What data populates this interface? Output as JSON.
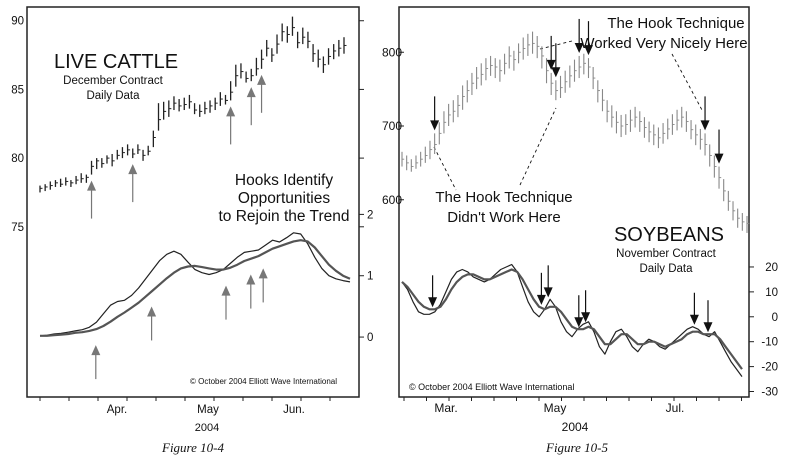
{
  "chart_data": [
    {
      "type": "line",
      "title": "LIVE CATTLE",
      "subtitle": [
        "December Contract",
        "Daily Data"
      ],
      "annotation": [
        "Hooks Identify",
        "Opportunities",
        "to Rejoin the Trend"
      ],
      "copyright": "© October 2004 Elliott Wave International",
      "figure_label": "Figure 10-4",
      "x_tick_labels": [
        "Apr.",
        "May",
        "Jun."
      ],
      "x_year": "2004",
      "price": {
        "y_ticks": [
          75,
          80,
          85,
          90
        ],
        "ylim": [
          72,
          91
        ],
        "bars": [
          [
            77.8,
            77.5,
            78.0
          ],
          [
            77.9,
            77.6,
            78.1
          ],
          [
            78.0,
            77.7,
            78.3
          ],
          [
            78.2,
            77.9,
            78.4
          ],
          [
            78.1,
            77.9,
            78.5
          ],
          [
            78.3,
            78.0,
            78.6
          ],
          [
            78.2,
            77.9,
            78.4
          ],
          [
            78.4,
            78.1,
            78.7
          ],
          [
            78.5,
            78.2,
            78.9
          ],
          [
            78.6,
            78.2,
            78.8
          ],
          [
            79.4,
            78.8,
            79.8
          ],
          [
            79.8,
            79.2,
            80.0
          ],
          [
            79.6,
            79.3,
            80.0
          ],
          [
            80.0,
            79.6,
            80.2
          ],
          [
            79.8,
            79.4,
            80.3
          ],
          [
            80.2,
            79.9,
            80.6
          ],
          [
            80.4,
            80.0,
            80.8
          ],
          [
            80.6,
            80.2,
            81.0
          ],
          [
            80.3,
            80.0,
            80.7
          ],
          [
            80.6,
            80.3,
            81.0
          ],
          [
            80.2,
            79.8,
            80.6
          ],
          [
            80.5,
            80.2,
            80.9
          ],
          [
            81.5,
            80.8,
            82.0
          ],
          [
            82.8,
            82.0,
            84.0
          ],
          [
            83.4,
            82.8,
            84.1
          ],
          [
            83.6,
            83.0,
            84.2
          ],
          [
            84.0,
            83.5,
            84.5
          ],
          [
            83.8,
            83.4,
            84.3
          ],
          [
            83.9,
            83.5,
            84.4
          ],
          [
            84.1,
            83.6,
            84.6
          ],
          [
            83.5,
            83.2,
            84.0
          ],
          [
            83.4,
            83.0,
            83.9
          ],
          [
            83.6,
            83.2,
            84.1
          ],
          [
            83.8,
            83.3,
            84.2
          ],
          [
            84.0,
            83.5,
            84.4
          ],
          [
            84.3,
            83.8,
            84.8
          ],
          [
            84.2,
            83.9,
            84.6
          ],
          [
            84.8,
            84.2,
            85.6
          ],
          [
            86.0,
            85.2,
            86.8
          ],
          [
            86.3,
            85.8,
            86.9
          ],
          [
            85.8,
            85.5,
            86.3
          ],
          [
            86.0,
            85.6,
            86.5
          ],
          [
            86.5,
            86.0,
            87.3
          ],
          [
            87.2,
            86.5,
            87.9
          ],
          [
            88.0,
            87.4,
            88.6
          ],
          [
            87.5,
            87.0,
            88.0
          ],
          [
            88.3,
            87.6,
            89.0
          ],
          [
            89.2,
            88.5,
            89.8
          ],
          [
            89.0,
            88.4,
            89.6
          ],
          [
            89.5,
            88.9,
            90.3
          ],
          [
            88.4,
            88.0,
            89.2
          ],
          [
            88.8,
            88.3,
            89.5
          ],
          [
            88.5,
            88.0,
            89.2
          ],
          [
            87.6,
            87.0,
            88.3
          ],
          [
            87.2,
            86.6,
            87.9
          ],
          [
            86.8,
            86.2,
            87.4
          ],
          [
            87.4,
            86.8,
            88.0
          ],
          [
            87.8,
            87.2,
            88.3
          ],
          [
            88.0,
            87.4,
            88.6
          ],
          [
            88.2,
            87.6,
            88.8
          ]
        ],
        "up_arrows": [
          10,
          18,
          37,
          41,
          43
        ]
      },
      "oscillator": {
        "y_ticks": [
          0,
          1,
          2
        ],
        "ylim": [
          -0.7,
          2.3
        ],
        "fast": [
          0.02,
          0.03,
          0.05,
          0.06,
          0.08,
          0.1,
          0.12,
          0.16,
          0.24,
          0.38,
          0.52,
          0.58,
          0.6,
          0.68,
          0.8,
          0.95,
          1.1,
          1.25,
          1.35,
          1.4,
          1.35,
          1.22,
          1.1,
          1.05,
          1.02,
          1.05,
          1.1,
          1.2,
          1.3,
          1.38,
          1.4,
          1.42,
          1.5,
          1.58,
          1.55,
          1.62,
          1.7,
          1.68,
          1.52,
          1.3,
          1.12,
          1.0,
          0.95,
          0.92,
          0.9
        ],
        "slow": [
          0.02,
          0.02,
          0.03,
          0.04,
          0.05,
          0.07,
          0.08,
          0.1,
          0.13,
          0.18,
          0.25,
          0.33,
          0.4,
          0.48,
          0.56,
          0.66,
          0.76,
          0.86,
          0.96,
          1.05,
          1.12,
          1.15,
          1.16,
          1.14,
          1.12,
          1.1,
          1.1,
          1.13,
          1.18,
          1.24,
          1.28,
          1.32,
          1.38,
          1.44,
          1.48,
          1.52,
          1.56,
          1.58,
          1.56,
          1.46,
          1.32,
          1.18,
          1.08,
          1.0,
          0.95
        ],
        "up_arrow_positions": [
          0.18,
          0.36,
          0.6,
          0.68,
          0.72
        ]
      }
    },
    {
      "type": "line",
      "title": "SOYBEANS",
      "subtitle": [
        "November Contract",
        "Daily Data"
      ],
      "annotation_top": [
        "The Hook Technique",
        "Worked Very Nicely Here"
      ],
      "annotation_bottom": [
        "The Hook Technique",
        "Didn't Work Here"
      ],
      "copyright": "© October 2004 Elliott Wave International",
      "figure_label": "Figure 10-5",
      "x_tick_labels": [
        "Mar.",
        "May",
        "Jul."
      ],
      "x_year": "2004",
      "price": {
        "y_ticks": [
          600,
          700,
          800
        ],
        "ylim": [
          540,
          860
        ],
        "bars": [
          [
            655,
            645,
            665
          ],
          [
            650,
            640,
            660
          ],
          [
            645,
            638,
            655
          ],
          [
            650,
            642,
            660
          ],
          [
            655,
            645,
            665
          ],
          [
            660,
            650,
            672
          ],
          [
            668,
            655,
            680
          ],
          [
            675,
            662,
            690
          ],
          [
            690,
            675,
            705
          ],
          [
            705,
            690,
            720
          ],
          [
            715,
            700,
            730
          ],
          [
            720,
            705,
            735
          ],
          [
            728,
            712,
            742
          ],
          [
            740,
            722,
            755
          ],
          [
            748,
            732,
            762
          ],
          [
            758,
            742,
            772
          ],
          [
            765,
            750,
            780
          ],
          [
            770,
            755,
            785
          ],
          [
            778,
            762,
            792
          ],
          [
            782,
            768,
            795
          ],
          [
            780,
            765,
            792
          ],
          [
            775,
            760,
            790
          ],
          [
            785,
            770,
            798
          ],
          [
            795,
            778,
            808
          ],
          [
            790,
            775,
            802
          ],
          [
            800,
            785,
            812
          ],
          [
            805,
            790,
            820
          ],
          [
            810,
            795,
            825
          ],
          [
            812,
            798,
            828
          ],
          [
            808,
            792,
            822
          ],
          [
            795,
            778,
            808
          ],
          [
            775,
            758,
            792
          ],
          [
            758,
            742,
            772
          ],
          [
            748,
            735,
            762
          ],
          [
            752,
            738,
            768
          ],
          [
            760,
            745,
            775
          ],
          [
            768,
            752,
            782
          ],
          [
            775,
            760,
            790
          ],
          [
            780,
            765,
            795
          ],
          [
            785,
            770,
            798
          ],
          [
            780,
            765,
            792
          ],
          [
            765,
            750,
            780
          ],
          [
            748,
            732,
            762
          ],
          [
            735,
            720,
            750
          ],
          [
            720,
            705,
            735
          ],
          [
            712,
            698,
            728
          ],
          [
            705,
            690,
            720
          ],
          [
            700,
            685,
            715
          ],
          [
            702,
            688,
            716
          ],
          [
            708,
            692,
            722
          ],
          [
            712,
            698,
            726
          ],
          [
            706,
            692,
            720
          ],
          [
            698,
            684,
            712
          ],
          [
            692,
            678,
            706
          ],
          [
            688,
            674,
            702
          ],
          [
            684,
            670,
            698
          ],
          [
            690,
            676,
            704
          ],
          [
            696,
            682,
            710
          ],
          [
            702,
            688,
            716
          ],
          [
            708,
            694,
            722
          ],
          [
            712,
            698,
            726
          ],
          [
            706,
            692,
            720
          ],
          [
            695,
            682,
            708
          ],
          [
            688,
            674,
            702
          ],
          [
            682,
            668,
            696
          ],
          [
            675,
            660,
            690
          ],
          [
            660,
            645,
            675
          ],
          [
            645,
            630,
            660
          ],
          [
            630,
            615,
            645
          ],
          [
            612,
            598,
            628
          ],
          [
            598,
            585,
            612
          ],
          [
            585,
            572,
            598
          ],
          [
            575,
            562,
            588
          ],
          [
            570,
            558,
            582
          ],
          [
            568,
            555,
            578
          ]
        ],
        "down_arrows": [
          7,
          32,
          33,
          38,
          40,
          65,
          68
        ]
      },
      "oscillator": {
        "y_ticks": [
          20,
          10,
          0,
          -10,
          -20,
          -30
        ],
        "ylim": [
          -31,
          24
        ],
        "fast": [
          14,
          11,
          6,
          2,
          1,
          1,
          2,
          5,
          10,
          15,
          18,
          19,
          18,
          16,
          15,
          14,
          15,
          17,
          19,
          20,
          21,
          18,
          12,
          6,
          2,
          0,
          3,
          7,
          4,
          -2,
          -6,
          -8,
          -5,
          -3,
          -2,
          -6,
          -12,
          -15,
          -10,
          -6,
          -5,
          -8,
          -12,
          -14,
          -11,
          -9,
          -10,
          -12,
          -13,
          -11,
          -9,
          -7,
          -5,
          -4,
          -5,
          -7,
          -8,
          -6,
          -10,
          -14,
          -18,
          -21,
          -24
        ],
        "slow": [
          14,
          12,
          9,
          6,
          4,
          3,
          3,
          4,
          7,
          11,
          14,
          16,
          17,
          17,
          16,
          15,
          15,
          16,
          17,
          18,
          19,
          18,
          15,
          11,
          7,
          4,
          3,
          4,
          4,
          2,
          -1,
          -4,
          -5,
          -5,
          -4,
          -5,
          -8,
          -11,
          -11,
          -9,
          -7,
          -7,
          -9,
          -11,
          -11,
          -10,
          -10,
          -11,
          -12,
          -11,
          -10,
          -9,
          -7,
          -6,
          -6,
          -7,
          -7,
          -7,
          -9,
          -12,
          -15,
          -18,
          -21
        ],
        "down_arrow_positions": [
          0.09,
          0.41,
          0.43,
          0.52,
          0.54,
          0.86,
          0.9
        ]
      }
    }
  ]
}
